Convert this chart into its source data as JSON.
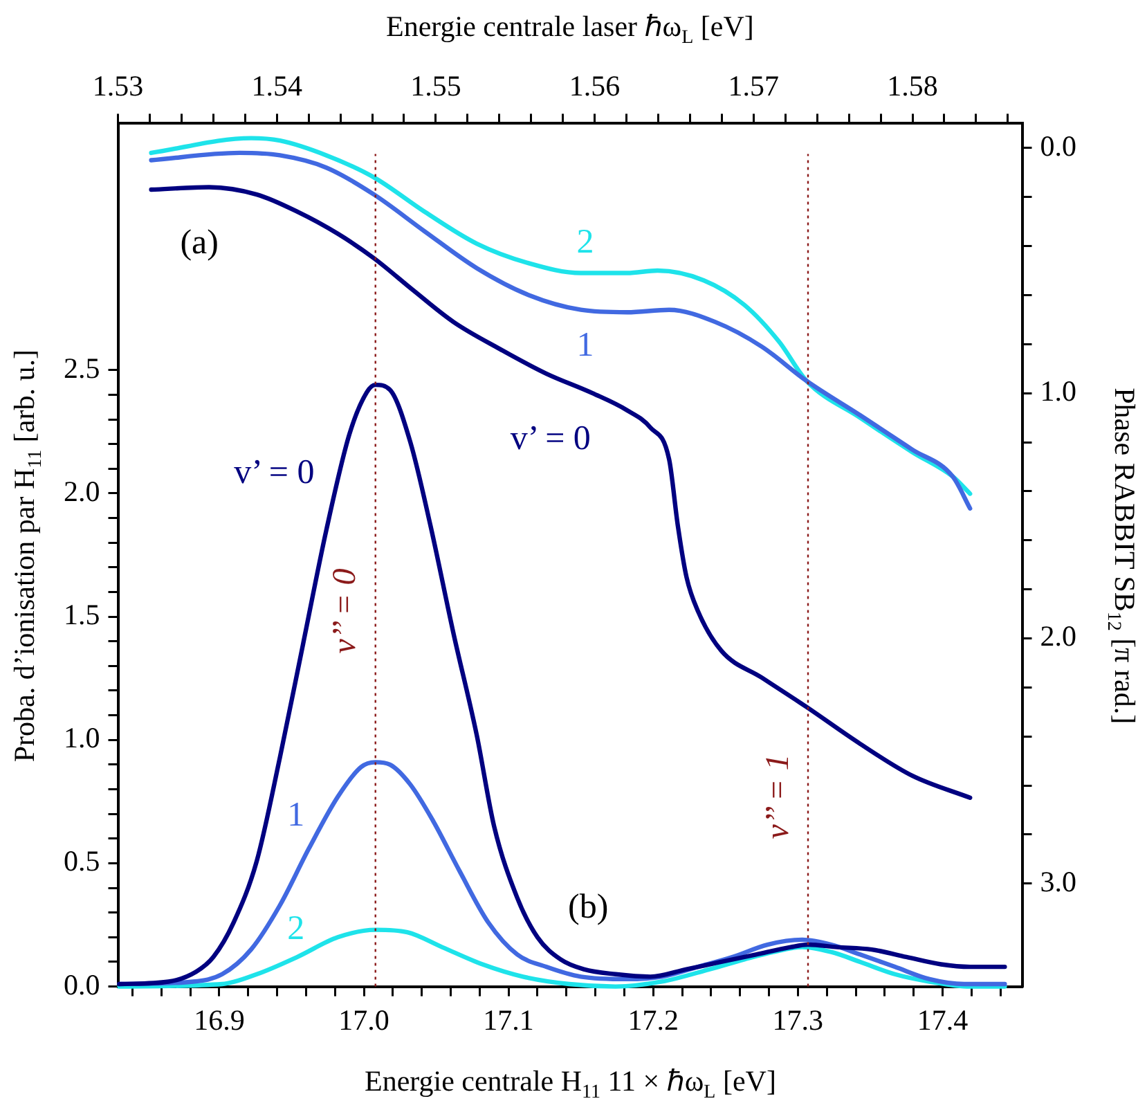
{
  "chart_data": {
    "type": "line",
    "xlabel": "Energie centrale H$_{11}$   11 × ℏω$_{L}$   [eV]",
    "x2label": "Energie centrale laser   ℏω$_{L}$   [eV]",
    "ylabel": "Proba. d’ionisation par H$_{11}$   [arb. u.]",
    "y2label": "Phase RABBIT SB$_{12}$   [π rad.]",
    "xlim": [
      16.83,
      17.455
    ],
    "xticks": [
      {
        "value": 16.84,
        "label": null
      },
      {
        "value": 16.86,
        "label": null
      },
      {
        "value": 16.88,
        "label": null
      },
      {
        "value": 16.9,
        "label": "16.9"
      },
      {
        "value": 16.92,
        "label": null
      },
      {
        "value": 16.94,
        "label": null
      },
      {
        "value": 16.96,
        "label": null
      },
      {
        "value": 16.98,
        "label": null
      },
      {
        "value": 17,
        "label": "17.0"
      },
      {
        "value": 17.02,
        "label": null
      },
      {
        "value": 17.04,
        "label": null
      },
      {
        "value": 17.06,
        "label": null
      },
      {
        "value": 17.08,
        "label": null
      },
      {
        "value": 17.1,
        "label": "17.1"
      },
      {
        "value": 17.12,
        "label": null
      },
      {
        "value": 17.14,
        "label": null
      },
      {
        "value": 17.16,
        "label": null
      },
      {
        "value": 17.18,
        "label": null
      },
      {
        "value": 17.2,
        "label": "17.2"
      },
      {
        "value": 17.22,
        "label": null
      },
      {
        "value": 17.24,
        "label": null
      },
      {
        "value": 17.26,
        "label": null
      },
      {
        "value": 17.28,
        "label": null
      },
      {
        "value": 17.3,
        "label": "17.3"
      },
      {
        "value": 17.32,
        "label": null
      },
      {
        "value": 17.34,
        "label": null
      },
      {
        "value": 17.36,
        "label": null
      },
      {
        "value": 17.38,
        "label": null
      },
      {
        "value": 17.4,
        "label": "17.4"
      },
      {
        "value": 17.42,
        "label": null
      },
      {
        "value": 17.44,
        "label": null
      }
    ],
    "x2lim": [
      1.53,
      1.5869
    ],
    "x2ticks": [
      1.53,
      {
        "value": 1.532,
        "label": null
      },
      {
        "value": 1.534,
        "label": null
      },
      {
        "value": 1.536,
        "label": null
      },
      {
        "value": 1.538,
        "label": null
      },
      1.54,
      {
        "value": 1.542,
        "label": null
      },
      {
        "value": 1.544,
        "label": null
      },
      {
        "value": 1.546,
        "label": null
      },
      {
        "value": 1.548,
        "label": null
      },
      1.55,
      {
        "value": 1.552,
        "label": null
      },
      {
        "value": 1.554,
        "label": null
      },
      {
        "value": 1.556,
        "label": null
      },
      {
        "value": 1.558,
        "label": null
      },
      1.56,
      {
        "value": 1.562,
        "label": null
      },
      {
        "value": 1.564,
        "label": null
      },
      {
        "value": 1.566,
        "label": null
      },
      {
        "value": 1.568,
        "label": null
      },
      1.57,
      {
        "value": 1.572,
        "label": null
      },
      {
        "value": 1.574,
        "label": null
      },
      {
        "value": 1.576,
        "label": null
      },
      {
        "value": 1.578,
        "label": null
      },
      1.58,
      {
        "value": 1.582,
        "label": null
      },
      {
        "value": 1.584,
        "label": null
      },
      {
        "value": 1.586,
        "label": null
      }
    ],
    "ylim": [
      0,
      3.5
    ],
    "yticks": [
      {
        "value": 0,
        "label": "0.0"
      },
      {
        "value": 0.1,
        "label": null
      },
      {
        "value": 0.2,
        "label": null
      },
      {
        "value": 0.3,
        "label": null
      },
      {
        "value": 0.4,
        "label": null
      },
      {
        "value": 0.5,
        "label": "0.5"
      },
      {
        "value": 0.6,
        "label": null
      },
      {
        "value": 0.7,
        "label": null
      },
      {
        "value": 0.8,
        "label": null
      },
      {
        "value": 0.9,
        "label": null
      },
      {
        "value": 1,
        "label": "1.0"
      },
      {
        "value": 1.1,
        "label": null
      },
      {
        "value": 1.2,
        "label": null
      },
      {
        "value": 1.3,
        "label": null
      },
      {
        "value": 1.4,
        "label": null
      },
      {
        "value": 1.5,
        "label": "1.5"
      },
      {
        "value": 1.6,
        "label": null
      },
      {
        "value": 1.7,
        "label": null
      },
      {
        "value": 1.8,
        "label": null
      },
      {
        "value": 1.9,
        "label": null
      },
      {
        "value": 2,
        "label": "2.0"
      },
      {
        "value": 2.1,
        "label": null
      },
      {
        "value": 2.2,
        "label": null
      },
      {
        "value": 2.3,
        "label": null
      },
      {
        "value": 2.4,
        "label": null
      },
      {
        "value": 2.5,
        "label": "2.5"
      }
    ],
    "y2lim": [
      3.42,
      -0.1
    ],
    "y2ticks": [
      {
        "value": 0,
        "label": "0.0"
      },
      {
        "value": 0.2,
        "label": null
      },
      {
        "value": 0.4,
        "label": null
      },
      {
        "value": 0.6,
        "label": null
      },
      {
        "value": 0.8,
        "label": null
      },
      {
        "value": 1,
        "label": "1.0"
      },
      {
        "value": 1.2,
        "label": null
      },
      {
        "value": 1.4,
        "label": null
      },
      {
        "value": 1.6,
        "label": null
      },
      {
        "value": 1.8,
        "label": null
      },
      {
        "value": 2,
        "label": "2.0"
      },
      {
        "value": 2.2,
        "label": null
      },
      {
        "value": 2.4,
        "label": null
      },
      {
        "value": 2.6,
        "label": null
      },
      {
        "value": 2.8,
        "label": null
      },
      {
        "value": 3,
        "label": "3.0"
      }
    ],
    "grid": false,
    "legend": false,
    "marker": "none",
    "line_style": "solid",
    "series": [
      {
        "name": "v’ = 0",
        "color": "#000080",
        "x": [
          16.831,
          16.865,
          16.884,
          16.896,
          16.91,
          16.926,
          16.942,
          16.958,
          16.974,
          16.99,
          17.002,
          17.008,
          17.018,
          17.032,
          17.046,
          17.062,
          17.078,
          17.09,
          17.106,
          17.12,
          17.136,
          17.152,
          17.174,
          17.198,
          17.223,
          17.247,
          17.271,
          17.295,
          17.307,
          17.327,
          17.351,
          17.375,
          17.399,
          17.419,
          17.443
        ],
        "values": [
          0.01,
          0.02,
          0.06,
          0.12,
          0.26,
          0.51,
          0.93,
          1.39,
          1.85,
          2.24,
          2.41,
          2.44,
          2.42,
          2.21,
          1.87,
          1.43,
          1.02,
          0.65,
          0.36,
          0.2,
          0.11,
          0.07,
          0.05,
          0.04,
          0.07,
          0.1,
          0.13,
          0.16,
          0.17,
          0.16,
          0.15,
          0.12,
          0.09,
          0.08,
          0.08
        ]
      },
      {
        "name": "1",
        "color": "#4169e1",
        "x": [
          16.831,
          16.882,
          16.902,
          16.922,
          16.942,
          16.962,
          16.982,
          16.998,
          17.008,
          17.018,
          17.032,
          17.048,
          17.066,
          17.086,
          17.106,
          17.126,
          17.15,
          17.182,
          17.206,
          17.231,
          17.255,
          17.279,
          17.303,
          17.323,
          17.343,
          17.367,
          17.391,
          17.415,
          17.443
        ],
        "values": [
          0.01,
          0.02,
          0.05,
          0.15,
          0.33,
          0.56,
          0.77,
          0.89,
          0.91,
          0.9,
          0.82,
          0.67,
          0.47,
          0.26,
          0.13,
          0.08,
          0.04,
          0.03,
          0.04,
          0.08,
          0.12,
          0.17,
          0.19,
          0.17,
          0.13,
          0.08,
          0.03,
          0.01,
          0.01
        ]
      },
      {
        "name": "2",
        "color": "#1ee3ea",
        "x": [
          16.831,
          16.902,
          16.926,
          16.954,
          16.982,
          17.008,
          17.03,
          17.054,
          17.082,
          17.11,
          17.142,
          17.174,
          17.206,
          17.239,
          17.263,
          17.283,
          17.303,
          17.323,
          17.343,
          17.367,
          17.391,
          17.419,
          17.443
        ],
        "values": [
          0,
          0.01,
          0.05,
          0.12,
          0.2,
          0.23,
          0.22,
          0.16,
          0.09,
          0.04,
          0.01,
          0,
          0.02,
          0.07,
          0.11,
          0.14,
          0.16,
          0.14,
          0.1,
          0.05,
          0.02,
          0,
          0
        ]
      },
      {
        "name": "v’ = 0",
        "color": "#000080",
        "axis": "y2",
        "x": [
          16.853,
          16.893,
          16.926,
          16.954,
          16.982,
          17.007,
          17.034,
          17.062,
          17.094,
          17.126,
          17.158,
          17.182,
          17.198,
          17.211,
          17.217,
          17.223,
          17.231,
          17.247,
          17.275,
          17.306,
          17.343,
          17.379,
          17.419
        ],
        "values": [
          0.17,
          0.16,
          0.19,
          0.26,
          0.35,
          0.45,
          0.58,
          0.71,
          0.82,
          0.92,
          1,
          1.07,
          1.14,
          1.27,
          1.54,
          1.75,
          1.89,
          2.05,
          2.16,
          2.28,
          2.43,
          2.56,
          2.65
        ]
      },
      {
        "name": "1",
        "color": "#4169e1",
        "axis": "y2",
        "x": [
          16.853,
          16.914,
          16.942,
          16.974,
          17.007,
          17.042,
          17.078,
          17.114,
          17.15,
          17.182,
          17.211,
          17.243,
          17.275,
          17.306,
          17.343,
          17.379,
          17.407,
          17.419
        ],
        "values": [
          0.05,
          0.02,
          0.03,
          0.08,
          0.19,
          0.34,
          0.49,
          0.6,
          0.66,
          0.67,
          0.66,
          0.71,
          0.81,
          0.95,
          1.09,
          1.23,
          1.34,
          1.47
        ]
      },
      {
        "name": "2",
        "color": "#1ee3ea",
        "axis": "y2",
        "x": [
          16.853,
          16.922,
          16.942,
          16.974,
          17.007,
          17.042,
          17.078,
          17.114,
          17.15,
          17.182,
          17.203,
          17.235,
          17.263,
          17.287,
          17.306,
          17.343,
          17.379,
          17.407,
          17.419
        ],
        "values": [
          0.02,
          -0.04,
          -0.03,
          0.03,
          0.12,
          0.26,
          0.39,
          0.47,
          0.51,
          0.51,
          0.5,
          0.54,
          0.64,
          0.79,
          0.95,
          1.1,
          1.24,
          1.34,
          1.41
        ]
      }
    ],
    "ref_lines": [
      {
        "axis": "x",
        "value": 17.008,
        "color": "#8b1a1a",
        "line_style": "dotted"
      },
      {
        "axis": "x",
        "value": 17.307,
        "color": "#8b1a1a",
        "line_style": "dotted"
      }
    ],
    "annotations": [
      "(a)",
      "(b)",
      {
        "text": "v’’ = 0",
        "x": 17.008,
        "y": 1.52
      },
      {
        "text": "v’’ = 1",
        "x": 17.307,
        "y": 0.77
      }
    ]
  }
}
